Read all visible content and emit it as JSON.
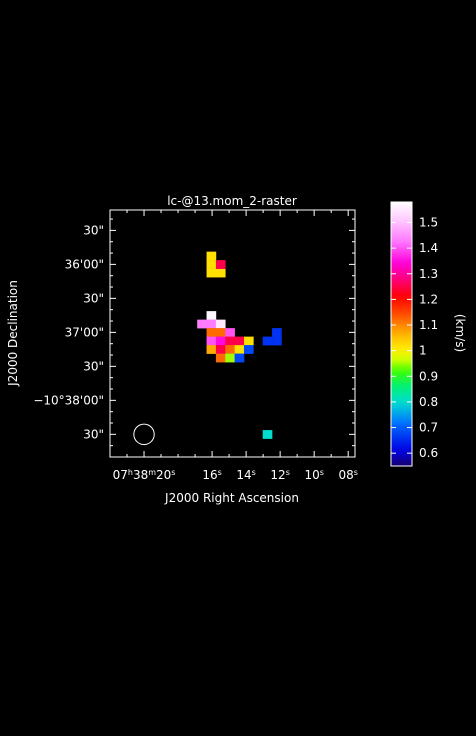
{
  "chart_data": {
    "type": "heatmap",
    "title": "lc-@13.mom_2-raster",
    "xlabel": "J2000 Right Ascension",
    "ylabel": "J2000 Declination",
    "x_ticks": [
      {
        "label_html": "07<tspan baseline-shift=\"super\" font-size=\"8\">h</tspan>38<tspan baseline-shift=\"super\" font-size=\"8\">m</tspan>20<tspan baseline-shift=\"super\" font-size=\"8\">s</tspan>",
        "sec": 20
      },
      {
        "label_html": "16<tspan baseline-shift=\"super\" font-size=\"8\">s</tspan>",
        "sec": 16
      },
      {
        "label_html": "14<tspan baseline-shift=\"super\" font-size=\"8\">s</tspan>",
        "sec": 14
      },
      {
        "label_html": "12<tspan baseline-shift=\"super\" font-size=\"8\">s</tspan>",
        "sec": 12
      },
      {
        "label_html": "10<tspan baseline-shift=\"super\" font-size=\"8\">s</tspan>",
        "sec": 10
      },
      {
        "label_html": "08<tspan baseline-shift=\"super\" font-size=\"8\">s</tspan>",
        "sec": 8
      }
    ],
    "y_ticks": [
      {
        "label": "30\"",
        "offset_arcsec": -150
      },
      {
        "label": "36'00\"",
        "offset_arcsec": -120
      },
      {
        "label": "30\"",
        "offset_arcsec": -90
      },
      {
        "label": "37'00\"",
        "offset_arcsec": -60
      },
      {
        "label": "30\"",
        "offset_arcsec": -30
      },
      {
        "label": "−10°38'00\"",
        "offset_arcsec": 0
      },
      {
        "label": "30\"",
        "offset_arcsec": 30
      }
    ],
    "x_range_sec": [
      22.0,
      7.6
    ],
    "y_range_offset_arcsec": [
      -168,
      50
    ],
    "colorbar": {
      "label": "(km/s)",
      "range": [
        0.55,
        1.58
      ],
      "ticks": [
        "0.6",
        "0.7",
        "0.8",
        "0.9",
        "1",
        "1.1",
        "1.2",
        "1.3",
        "1.4",
        "1.5"
      ],
      "tick_values": [
        0.6,
        0.7,
        0.8,
        0.9,
        1.0,
        1.1,
        1.2,
        1.3,
        1.4,
        1.5
      ]
    },
    "pixel_step_sec": 0.55,
    "pixel_step_arcsec": 7.5,
    "pixels": [
      {
        "sec": 16.05,
        "dec_off": -127.5,
        "value": 1.02
      },
      {
        "sec": 16.05,
        "dec_off": -120.0,
        "value": 1.02
      },
      {
        "sec": 16.05,
        "dec_off": -112.5,
        "value": 1.02
      },
      {
        "sec": 15.5,
        "dec_off": -112.5,
        "value": 1.02
      },
      {
        "sec": 15.5,
        "dec_off": -120.0,
        "value": 1.25
      },
      {
        "sec": 16.05,
        "dec_off": -75.0,
        "value": 1.57
      },
      {
        "sec": 16.6,
        "dec_off": -67.5,
        "value": 1.43
      },
      {
        "sec": 16.05,
        "dec_off": -67.5,
        "value": 1.43
      },
      {
        "sec": 15.5,
        "dec_off": -67.5,
        "value": 1.55
      },
      {
        "sec": 16.05,
        "dec_off": -60.0,
        "value": 1.12
      },
      {
        "sec": 15.5,
        "dec_off": -60.0,
        "value": 1.12
      },
      {
        "sec": 14.95,
        "dec_off": -60.0,
        "value": 1.4
      },
      {
        "sec": 16.05,
        "dec_off": -52.5,
        "value": 1.4
      },
      {
        "sec": 15.5,
        "dec_off": -52.5,
        "value": 1.35
      },
      {
        "sec": 14.95,
        "dec_off": -52.5,
        "value": 1.25
      },
      {
        "sec": 14.4,
        "dec_off": -52.5,
        "value": 1.25
      },
      {
        "sec": 13.85,
        "dec_off": -52.5,
        "value": 1.02
      },
      {
        "sec": 16.05,
        "dec_off": -45.0,
        "value": 1.07
      },
      {
        "sec": 15.5,
        "dec_off": -45.0,
        "value": 1.25
      },
      {
        "sec": 14.95,
        "dec_off": -45.0,
        "value": 1.12
      },
      {
        "sec": 14.4,
        "dec_off": -45.0,
        "value": 1.02
      },
      {
        "sec": 13.85,
        "dec_off": -45.0,
        "value": 0.68
      },
      {
        "sec": 15.5,
        "dec_off": -37.5,
        "value": 1.12
      },
      {
        "sec": 14.95,
        "dec_off": -37.5,
        "value": 0.95
      },
      {
        "sec": 14.4,
        "dec_off": -37.5,
        "value": 0.68
      },
      {
        "sec": 12.75,
        "dec_off": -52.5,
        "value": 0.66
      },
      {
        "sec": 12.2,
        "dec_off": -52.5,
        "value": 0.66
      },
      {
        "sec": 12.2,
        "dec_off": -60.0,
        "value": 0.66
      },
      {
        "sec": 12.75,
        "dec_off": 30.0,
        "value": 0.8
      }
    ],
    "beam": {
      "diameter_arcsec": 18.0,
      "sec": 20.0,
      "dec_off": 30.0
    },
    "grid": false,
    "legend": "colorbar-right"
  }
}
